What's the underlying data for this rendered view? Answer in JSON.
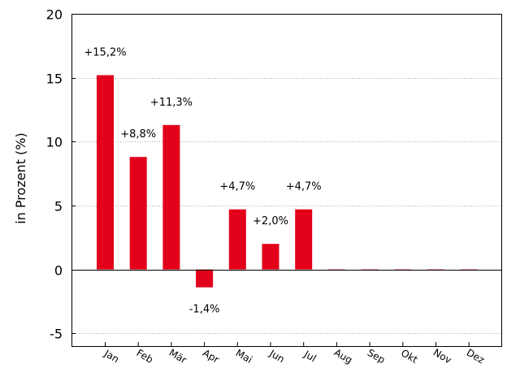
{
  "chart_data": {
    "type": "bar",
    "ylabel": "in Prozent (%)",
    "xlabel": "",
    "ylim": [
      -6,
      20
    ],
    "yticks": [
      -5,
      0,
      5,
      10,
      15,
      20
    ],
    "ytick_labels": [
      "-5",
      "0",
      "5",
      "10",
      "15",
      "20"
    ],
    "grid": "horizontal dotted",
    "bar_color": "#e2001a",
    "categories": [
      "Jan",
      "Feb",
      "Mär",
      "Apr",
      "Mai",
      "Jun",
      "Jul",
      "Aug",
      "Sep",
      "Okt",
      "Nov",
      "Dez"
    ],
    "values": [
      15.2,
      8.8,
      11.3,
      -1.4,
      4.7,
      2.0,
      4.7,
      0,
      0,
      0,
      0,
      0
    ],
    "data_labels": [
      "+15,2%",
      "+8,8%",
      "+11,3%",
      "-1,4%",
      "+4,7%",
      "+2,0%",
      "+4,7%",
      "",
      "",
      "",
      "",
      ""
    ]
  }
}
